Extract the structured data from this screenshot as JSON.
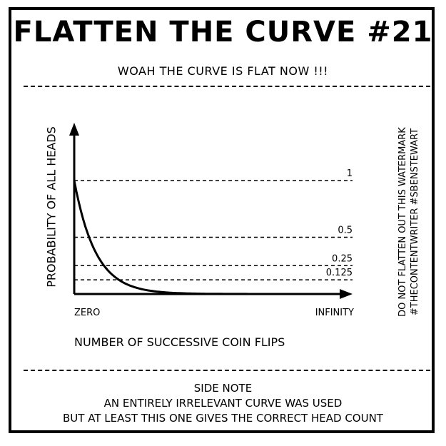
{
  "header": {
    "title": "FLATTEN THE CURVE #21",
    "subtitle": "WOAH THE CURVE IS FLAT NOW !!!"
  },
  "chart_data": {
    "type": "line",
    "ylabel": "PROBABILITY OF ALL HEADS",
    "xlabel": "NUMBER OF SUCCESSIVE COIN FLIPS",
    "x_tick_labels": [
      "ZERO",
      "INFINITY"
    ],
    "reference_lines": [
      {
        "value": 1,
        "label": "1"
      },
      {
        "value": 0.5,
        "label": "0.5"
      },
      {
        "value": 0.25,
        "label": "0.25"
      },
      {
        "value": 0.125,
        "label": "0.125"
      }
    ],
    "ylim": [
      0,
      1.2
    ],
    "grid": false,
    "series": [
      {
        "values": [
          [
            0,
            1
          ],
          [
            1,
            0.5
          ],
          [
            2,
            0.25
          ],
          [
            3,
            0.125
          ],
          [
            4,
            0.0625
          ],
          [
            5,
            0.03125
          ],
          [
            6,
            0.015625
          ],
          [
            8,
            0.0039
          ],
          [
            10,
            0.001
          ],
          [
            15,
            3e-05
          ],
          [
            20,
            0
          ]
        ]
      }
    ]
  },
  "watermark": {
    "line1": "DO NOT FLATTEN OUT THIS WATERMARK",
    "line2": "#THECONTENTWRITER #SBENSTEWART"
  },
  "side_note": {
    "heading": "SIDE NOTE",
    "line1": "AN ENTIRELY IRRELEVANT CURVE WAS USED",
    "line2": "BUT AT LEAST THIS ONE GIVES THE CORRECT HEAD COUNT"
  }
}
